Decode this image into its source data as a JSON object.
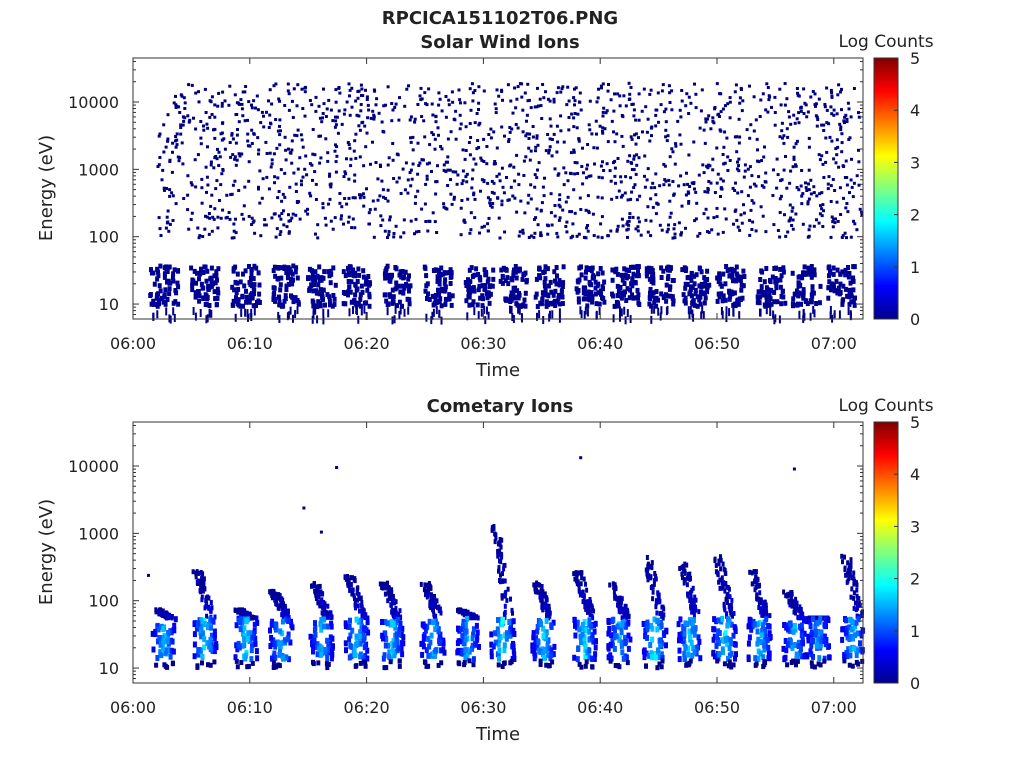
{
  "figure": {
    "title": "RPCICA151102T06.PNG"
  },
  "chart_data": [
    {
      "type": "heatmap",
      "title": "Solar Wind Ions",
      "xlabel": "Time",
      "ylabel": "Energy (eV)",
      "x_ticks": [
        "06:00",
        "06:10",
        "06:20",
        "06:30",
        "06:40",
        "06:50",
        "07:00"
      ],
      "x_range_minutes": [
        0,
        62.5
      ],
      "y_ticks": [
        "10",
        "100",
        "1000",
        "10000"
      ],
      "y_scale": "log",
      "y_range": [
        6,
        45000
      ],
      "colorbar": {
        "label": "Log Counts",
        "range": [
          0,
          5
        ],
        "ticks": [
          "0",
          "1",
          "2",
          "3",
          "4",
          "5"
        ],
        "colormap": "jet"
      },
      "description_level": "sparse single-count noise (log counts ~0) from ~100 eV to ~20000 eV throughout 06:02–07:02; dense low-level counts between ~10 and ~40 eV in bursts",
      "bursts_minutes": [
        2.5,
        6,
        9.5,
        13,
        16,
        19,
        22.5,
        26,
        29.5,
        32.5,
        35.5,
        39,
        42,
        45,
        48,
        51,
        54.5,
        57.5,
        60.5
      ],
      "burst_energy_range_eV": [
        10,
        40
      ],
      "noise_energy_range_eV": [
        100,
        20000
      ],
      "noise_level_log_counts": 0
    },
    {
      "type": "heatmap",
      "title": "Cometary Ions",
      "xlabel": "Time",
      "ylabel": "Energy (eV)",
      "x_ticks": [
        "06:00",
        "06:10",
        "06:20",
        "06:30",
        "06:40",
        "06:50",
        "07:00"
      ],
      "x_range_minutes": [
        0,
        62.5
      ],
      "y_ticks": [
        "10",
        "100",
        "1000",
        "10000"
      ],
      "y_scale": "log",
      "y_range": [
        6,
        45000
      ],
      "colorbar": {
        "label": "Log Counts",
        "range": [
          0,
          5
        ],
        "ticks": [
          "0",
          "1",
          "2",
          "3",
          "4",
          "5"
        ],
        "colormap": "jet"
      },
      "bursts": [
        {
          "t": 2.5,
          "peak_eV": 80,
          "level": 1.4
        },
        {
          "t": 6,
          "peak_eV": 300,
          "level": 1.7
        },
        {
          "t": 9.5,
          "peak_eV": 80,
          "level": 1.5
        },
        {
          "t": 12.5,
          "peak_eV": 150,
          "level": 1.4
        },
        {
          "t": 16,
          "peak_eV": 200,
          "level": 1.3
        },
        {
          "t": 19,
          "peak_eV": 250,
          "level": 1.5
        },
        {
          "t": 22,
          "peak_eV": 200,
          "level": 1.5
        },
        {
          "t": 25.5,
          "peak_eV": 200,
          "level": 1.3
        },
        {
          "t": 28.5,
          "peak_eV": 80,
          "level": 1.3
        },
        {
          "t": 31.5,
          "peak_eV": 1500,
          "level": 1.8
        },
        {
          "t": 35,
          "peak_eV": 200,
          "level": 1.5
        },
        {
          "t": 38.5,
          "peak_eV": 300,
          "level": 1.6
        },
        {
          "t": 41.5,
          "peak_eV": 200,
          "level": 1.4
        },
        {
          "t": 44.5,
          "peak_eV": 500,
          "level": 1.8
        },
        {
          "t": 47.5,
          "peak_eV": 400,
          "level": 1.5
        },
        {
          "t": 50.5,
          "peak_eV": 500,
          "level": 1.6
        },
        {
          "t": 53.5,
          "peak_eV": 300,
          "level": 1.5
        },
        {
          "t": 56.5,
          "peak_eV": 150,
          "level": 1.3
        },
        {
          "t": 58.5,
          "peak_eV": 60,
          "level": 1.2
        },
        {
          "t": 61.5,
          "peak_eV": 500,
          "level": 1.4
        }
      ],
      "burst_base_energy_eV": [
        15,
        60
      ],
      "isolated_points": [
        {
          "t": 14.5,
          "eV": 2500
        },
        {
          "t": 16,
          "eV": 1100
        },
        {
          "t": 17.3,
          "eV": 10000
        },
        {
          "t": 38.2,
          "eV": 14000
        },
        {
          "t": 56.5,
          "eV": 9500
        },
        {
          "t": 1.2,
          "eV": 250
        }
      ]
    }
  ]
}
